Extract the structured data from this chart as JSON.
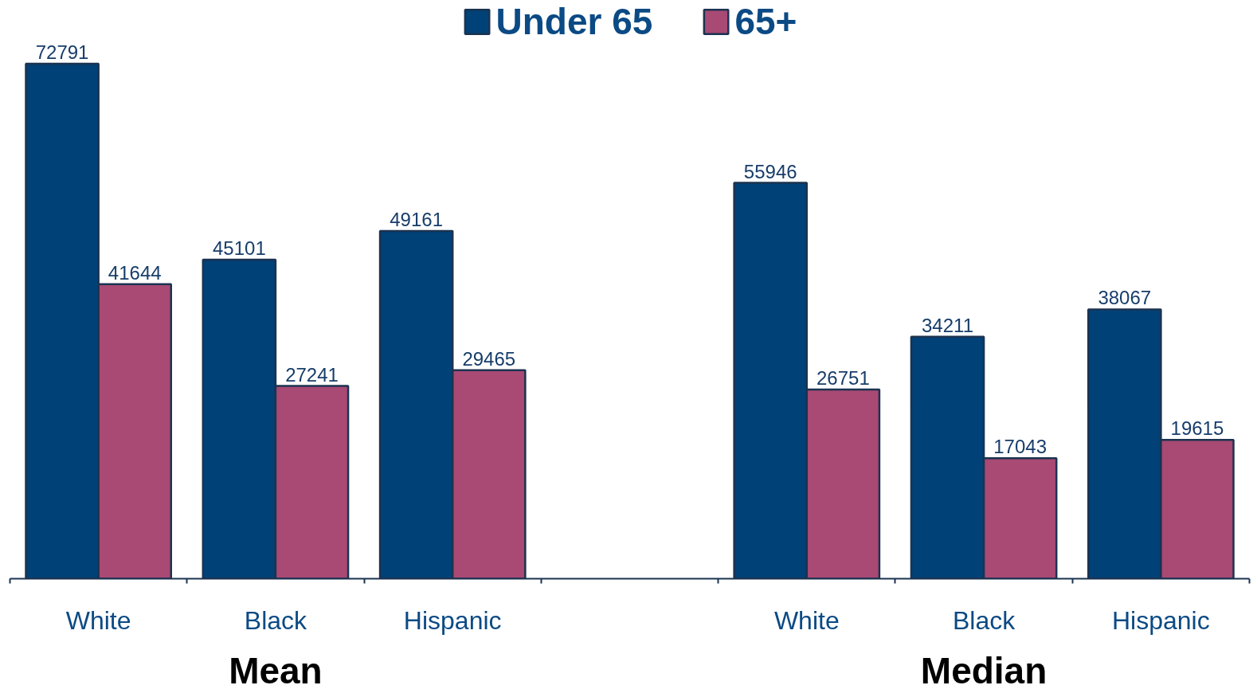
{
  "chart_data": {
    "type": "bar",
    "categories": [
      "White",
      "Black",
      "Hispanic",
      null,
      "White",
      "Black",
      "Hispanic"
    ],
    "series": [
      {
        "name": "Under 65",
        "color": "#004177",
        "values": [
          72791,
          45101,
          49161,
          null,
          55946,
          34211,
          38067
        ]
      },
      {
        "name": "65+",
        "color": "#a84a74",
        "values": [
          41644,
          27241,
          29465,
          null,
          26751,
          17043,
          19615
        ]
      }
    ],
    "data_labels": true,
    "legend": "top",
    "grid": false,
    "annotations": [
      "Mean",
      "Median"
    ]
  }
}
